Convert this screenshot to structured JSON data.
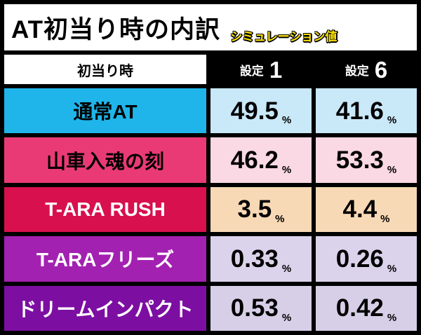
{
  "title": "AT初当り時の内訳",
  "subtitle": "シミュレーション値",
  "colors": {
    "frame_background": "#000000",
    "title_bg": "#ffffff",
    "title_text": "#000000",
    "subtitle_yellow": "#ffe400",
    "header_setting_bg": "#000000",
    "header_setting_text": "#ffffff",
    "header_category_bg": "#ffffff"
  },
  "table": {
    "header": {
      "label": "初当り時",
      "settings": [
        {
          "prefix": "設定",
          "number": "1"
        },
        {
          "prefix": "設定",
          "number": "6"
        }
      ]
    },
    "rows": [
      {
        "label": "通常AT",
        "label_bg": "#1fb5ea",
        "label_color": "#000000",
        "value_bg": "#c9e8f8",
        "values": [
          {
            "num": "49.5",
            "unit": "%"
          },
          {
            "num": "41.6",
            "unit": "%"
          }
        ]
      },
      {
        "label": "山車入魂の刻",
        "label_bg": "#ea3a76",
        "label_color": "#000000",
        "value_bg": "#fad8e4",
        "values": [
          {
            "num": "46.2",
            "unit": "%"
          },
          {
            "num": "53.3",
            "unit": "%"
          }
        ]
      },
      {
        "label": "T-ARA RUSH",
        "label_bg": "#d8104e",
        "label_color": "#ffffff",
        "value_bg": "#f8d9b6",
        "values": [
          {
            "num": "3.5",
            "unit": "%"
          },
          {
            "num": "4.4",
            "unit": "%"
          }
        ]
      },
      {
        "label": "T-ARAフリーズ",
        "label_bg": "#a321b1",
        "label_color": "#ffffff",
        "value_bg": "#dbd3ec",
        "values": [
          {
            "num": "0.33",
            "unit": "%"
          },
          {
            "num": "0.26",
            "unit": "%"
          }
        ]
      },
      {
        "label": "ドリームインパクト",
        "label_bg": "#7c0fa2",
        "label_color": "#ffffff",
        "value_bg": "#d7cee7",
        "values": [
          {
            "num": "0.53",
            "unit": "%"
          },
          {
            "num": "0.42",
            "unit": "%"
          }
        ]
      }
    ]
  },
  "chart_data": {
    "type": "table",
    "title": "AT初当り時の内訳",
    "subtitle": "シミュレーション値",
    "columns": [
      "初当り時",
      "設定1",
      "設定6"
    ],
    "rows": [
      [
        "通常AT",
        "49.5%",
        "41.6%"
      ],
      [
        "山車入魂の刻",
        "46.2%",
        "53.3%"
      ],
      [
        "T-ARA RUSH",
        "3.5%",
        "4.4%"
      ],
      [
        "T-ARAフリーズ",
        "0.33%",
        "0.26%"
      ],
      [
        "ドリームインパクト",
        "0.53%",
        "0.42%"
      ]
    ]
  }
}
